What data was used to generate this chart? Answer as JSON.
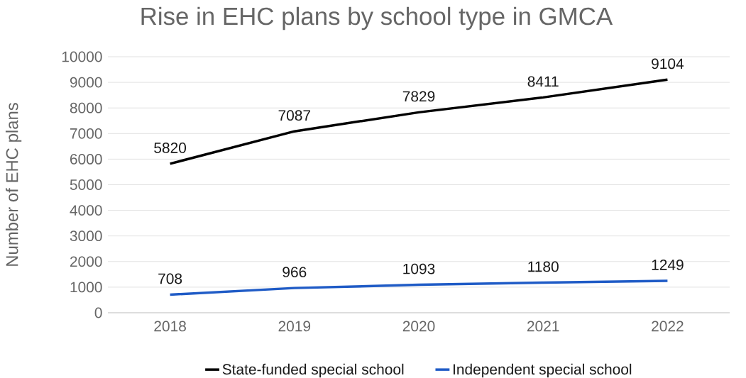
{
  "chart_data": {
    "type": "line",
    "title": "Rise in EHC plans by school type in GMCA",
    "ylabel": "Number of EHC plans",
    "categories": [
      "2018",
      "2019",
      "2020",
      "2021",
      "2022"
    ],
    "series": [
      {
        "name": "State-funded special school",
        "color": "#000000",
        "values": [
          5820,
          7087,
          7829,
          8411,
          9104
        ]
      },
      {
        "name": "Independent special school",
        "color": "#1f5bc6",
        "values": [
          708,
          966,
          1093,
          1180,
          1249
        ]
      }
    ],
    "ylim": [
      0,
      10000
    ],
    "yticks": [
      0,
      1000,
      2000,
      3000,
      4000,
      5000,
      6000,
      7000,
      8000,
      9000,
      10000
    ],
    "grid": "y",
    "legend": "bottom",
    "data_labels": true,
    "marker": "none",
    "line_style": "solid"
  }
}
